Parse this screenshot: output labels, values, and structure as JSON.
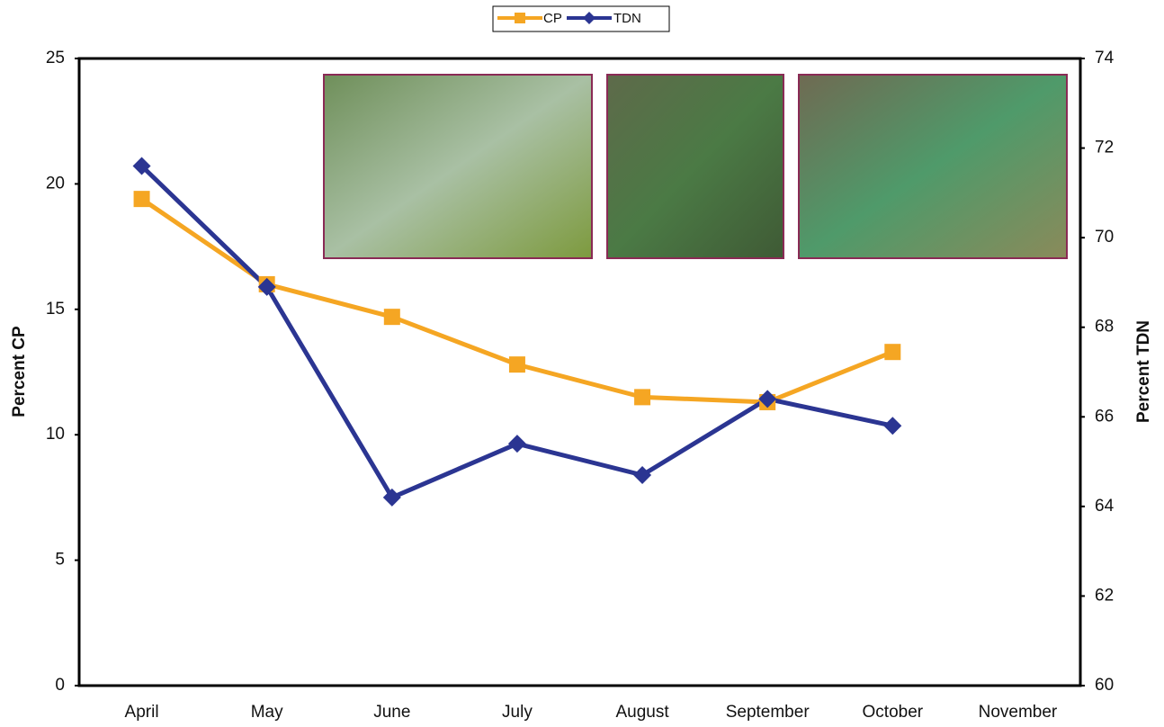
{
  "chart_data": {
    "type": "line",
    "categories": [
      "April",
      "May",
      "June",
      "July",
      "August",
      "September",
      "October",
      "November"
    ],
    "series": [
      {
        "name": "CP",
        "color": "#f5a623",
        "marker": "square",
        "axis": "y",
        "values": [
          19.4,
          16.0,
          14.7,
          12.8,
          11.5,
          11.3,
          13.3,
          null
        ]
      },
      {
        "name": "TDN",
        "color": "#2b3592",
        "marker": "diamond",
        "axis": "y2",
        "values": [
          71.6,
          68.9,
          64.2,
          65.4,
          64.7,
          66.4,
          65.8,
          null
        ]
      }
    ],
    "ylabel": "Percent CP",
    "y2label": "Percent TDN",
    "ylim": [
      0,
      25
    ],
    "yticks": [
      0,
      5,
      10,
      15,
      20,
      25
    ],
    "y2lim": [
      60,
      74
    ],
    "y2ticks": [
      60,
      62,
      64,
      66,
      68,
      70,
      72,
      74
    ],
    "grid": false,
    "legend": "top"
  }
}
